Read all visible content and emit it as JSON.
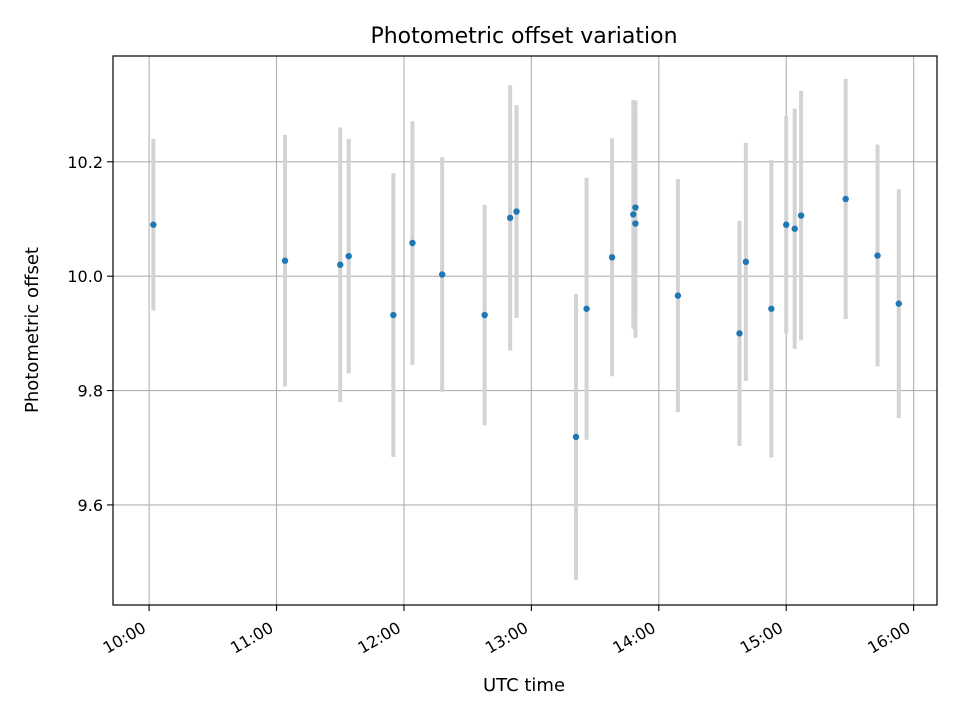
{
  "chart_data": {
    "type": "scatter",
    "title": "Photometric offset variation",
    "xlabel": "UTC time",
    "ylabel": "Photometric offset",
    "x_ticks": [
      "10:00",
      "11:00",
      "12:00",
      "13:00",
      "14:00",
      "15:00",
      "16:00"
    ],
    "y_ticks": [
      "9.6",
      "9.8",
      "10.0",
      "10.2"
    ],
    "xlim": [
      "09:43",
      "16:11"
    ],
    "ylim": [
      9.425,
      10.385
    ],
    "grid": true,
    "colors": {
      "points": "#1f77b4",
      "errorbars": "#d3d3d3",
      "grid": "#b0b0b0"
    },
    "points": [
      {
        "x": "10:02",
        "y": 10.09,
        "err": 0.15
      },
      {
        "x": "11:04",
        "y": 10.027,
        "err": 0.22
      },
      {
        "x": "11:30",
        "y": 10.02,
        "err": 0.24
      },
      {
        "x": "11:34",
        "y": 10.035,
        "err": 0.205
      },
      {
        "x": "11:55",
        "y": 9.932,
        "err": 0.248
      },
      {
        "x": "12:04",
        "y": 10.058,
        "err": 0.213
      },
      {
        "x": "12:18",
        "y": 10.003,
        "err": 0.205
      },
      {
        "x": "12:38",
        "y": 9.932,
        "err": 0.193
      },
      {
        "x": "12:50",
        "y": 10.102,
        "err": 0.232
      },
      {
        "x": "12:53",
        "y": 10.113,
        "err": 0.186
      },
      {
        "x": "13:21",
        "y": 9.719,
        "err": 0.25
      },
      {
        "x": "13:26",
        "y": 9.943,
        "err": 0.229
      },
      {
        "x": "13:38",
        "y": 10.033,
        "err": 0.208
      },
      {
        "x": "13:48",
        "y": 10.108,
        "err": 0.2
      },
      {
        "x": "13:49",
        "y": 10.12,
        "err": 0.187
      },
      {
        "x": "13:49",
        "y": 10.092,
        "err": 0.2
      },
      {
        "x": "14:09",
        "y": 9.966,
        "err": 0.204
      },
      {
        "x": "14:38",
        "y": 9.9,
        "err": 0.197
      },
      {
        "x": "14:41",
        "y": 10.025,
        "err": 0.208
      },
      {
        "x": "14:53",
        "y": 9.943,
        "err": 0.26
      },
      {
        "x": "15:00",
        "y": 10.09,
        "err": 0.19
      },
      {
        "x": "15:04",
        "y": 10.083,
        "err": 0.21
      },
      {
        "x": "15:07",
        "y": 10.106,
        "err": 0.218
      },
      {
        "x": "15:28",
        "y": 10.135,
        "err": 0.21
      },
      {
        "x": "15:43",
        "y": 10.036,
        "err": 0.194
      },
      {
        "x": "15:53",
        "y": 9.952,
        "err": 0.2
      }
    ]
  }
}
